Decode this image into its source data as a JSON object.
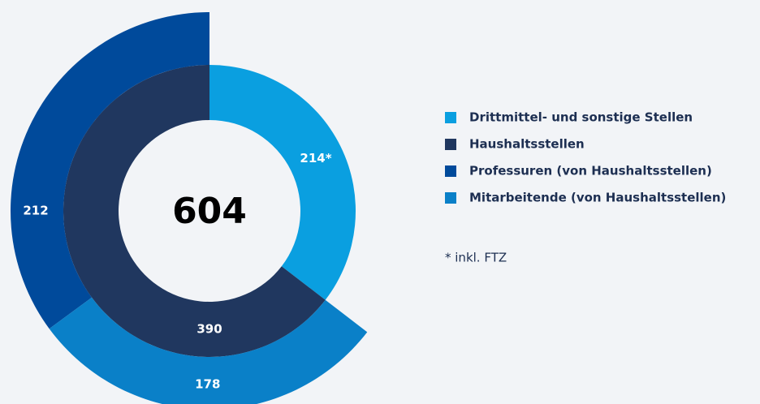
{
  "chart_data": {
    "type": "sunburst",
    "center_label": 604,
    "inner": {
      "categories": [
        "Drittmittel- und sonstige Stellen",
        "Haushaltsstellen"
      ],
      "values": [
        214,
        390
      ],
      "value_labels": [
        "214*",
        "390"
      ],
      "colors": [
        "#0a9fe0",
        "#20375f"
      ]
    },
    "outer": {
      "categories": [
        "Professuren (von Haushaltsstellen)",
        "Mitarbeitende (von Haushaltsstellen)"
      ],
      "values": [
        212,
        178
      ],
      "colors": [
        "#004a9b",
        "#0a80c8"
      ]
    },
    "footnote": "* inkl. FTZ"
  }
}
